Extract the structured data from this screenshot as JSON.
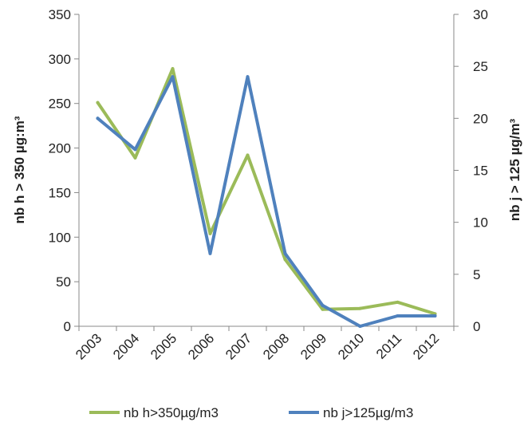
{
  "chart_data": {
    "type": "line",
    "title": "",
    "categories": [
      "2003",
      "2004",
      "2005",
      "2006",
      "2007",
      "2008",
      "2009",
      "2010",
      "2011",
      "2012"
    ],
    "ylabel_left": "nb h > 350 µg:m³",
    "ylabel_right": "nb j > 125 µg/m³",
    "ylim_left": [
      0,
      350
    ],
    "ylim_right": [
      0,
      30
    ],
    "yticks_left": [
      "0",
      "50",
      "100",
      "150",
      "200",
      "250",
      "300",
      "350"
    ],
    "yticks_right": [
      "0",
      "5",
      "10",
      "15",
      "20",
      "25",
      "30"
    ],
    "grid": false,
    "legend": "bottom",
    "series": [
      {
        "name": "nb h>350µg/m3",
        "axis": "left",
        "color": "#9BBB59",
        "values": [
          251,
          189,
          289,
          104,
          192,
          75,
          19,
          20,
          27,
          14
        ]
      },
      {
        "name": "nb j>125µg/m3",
        "axis": "right",
        "color": "#4F81BD",
        "values": [
          20,
          17,
          24,
          7,
          24,
          7,
          2,
          0,
          1,
          1
        ]
      }
    ]
  }
}
